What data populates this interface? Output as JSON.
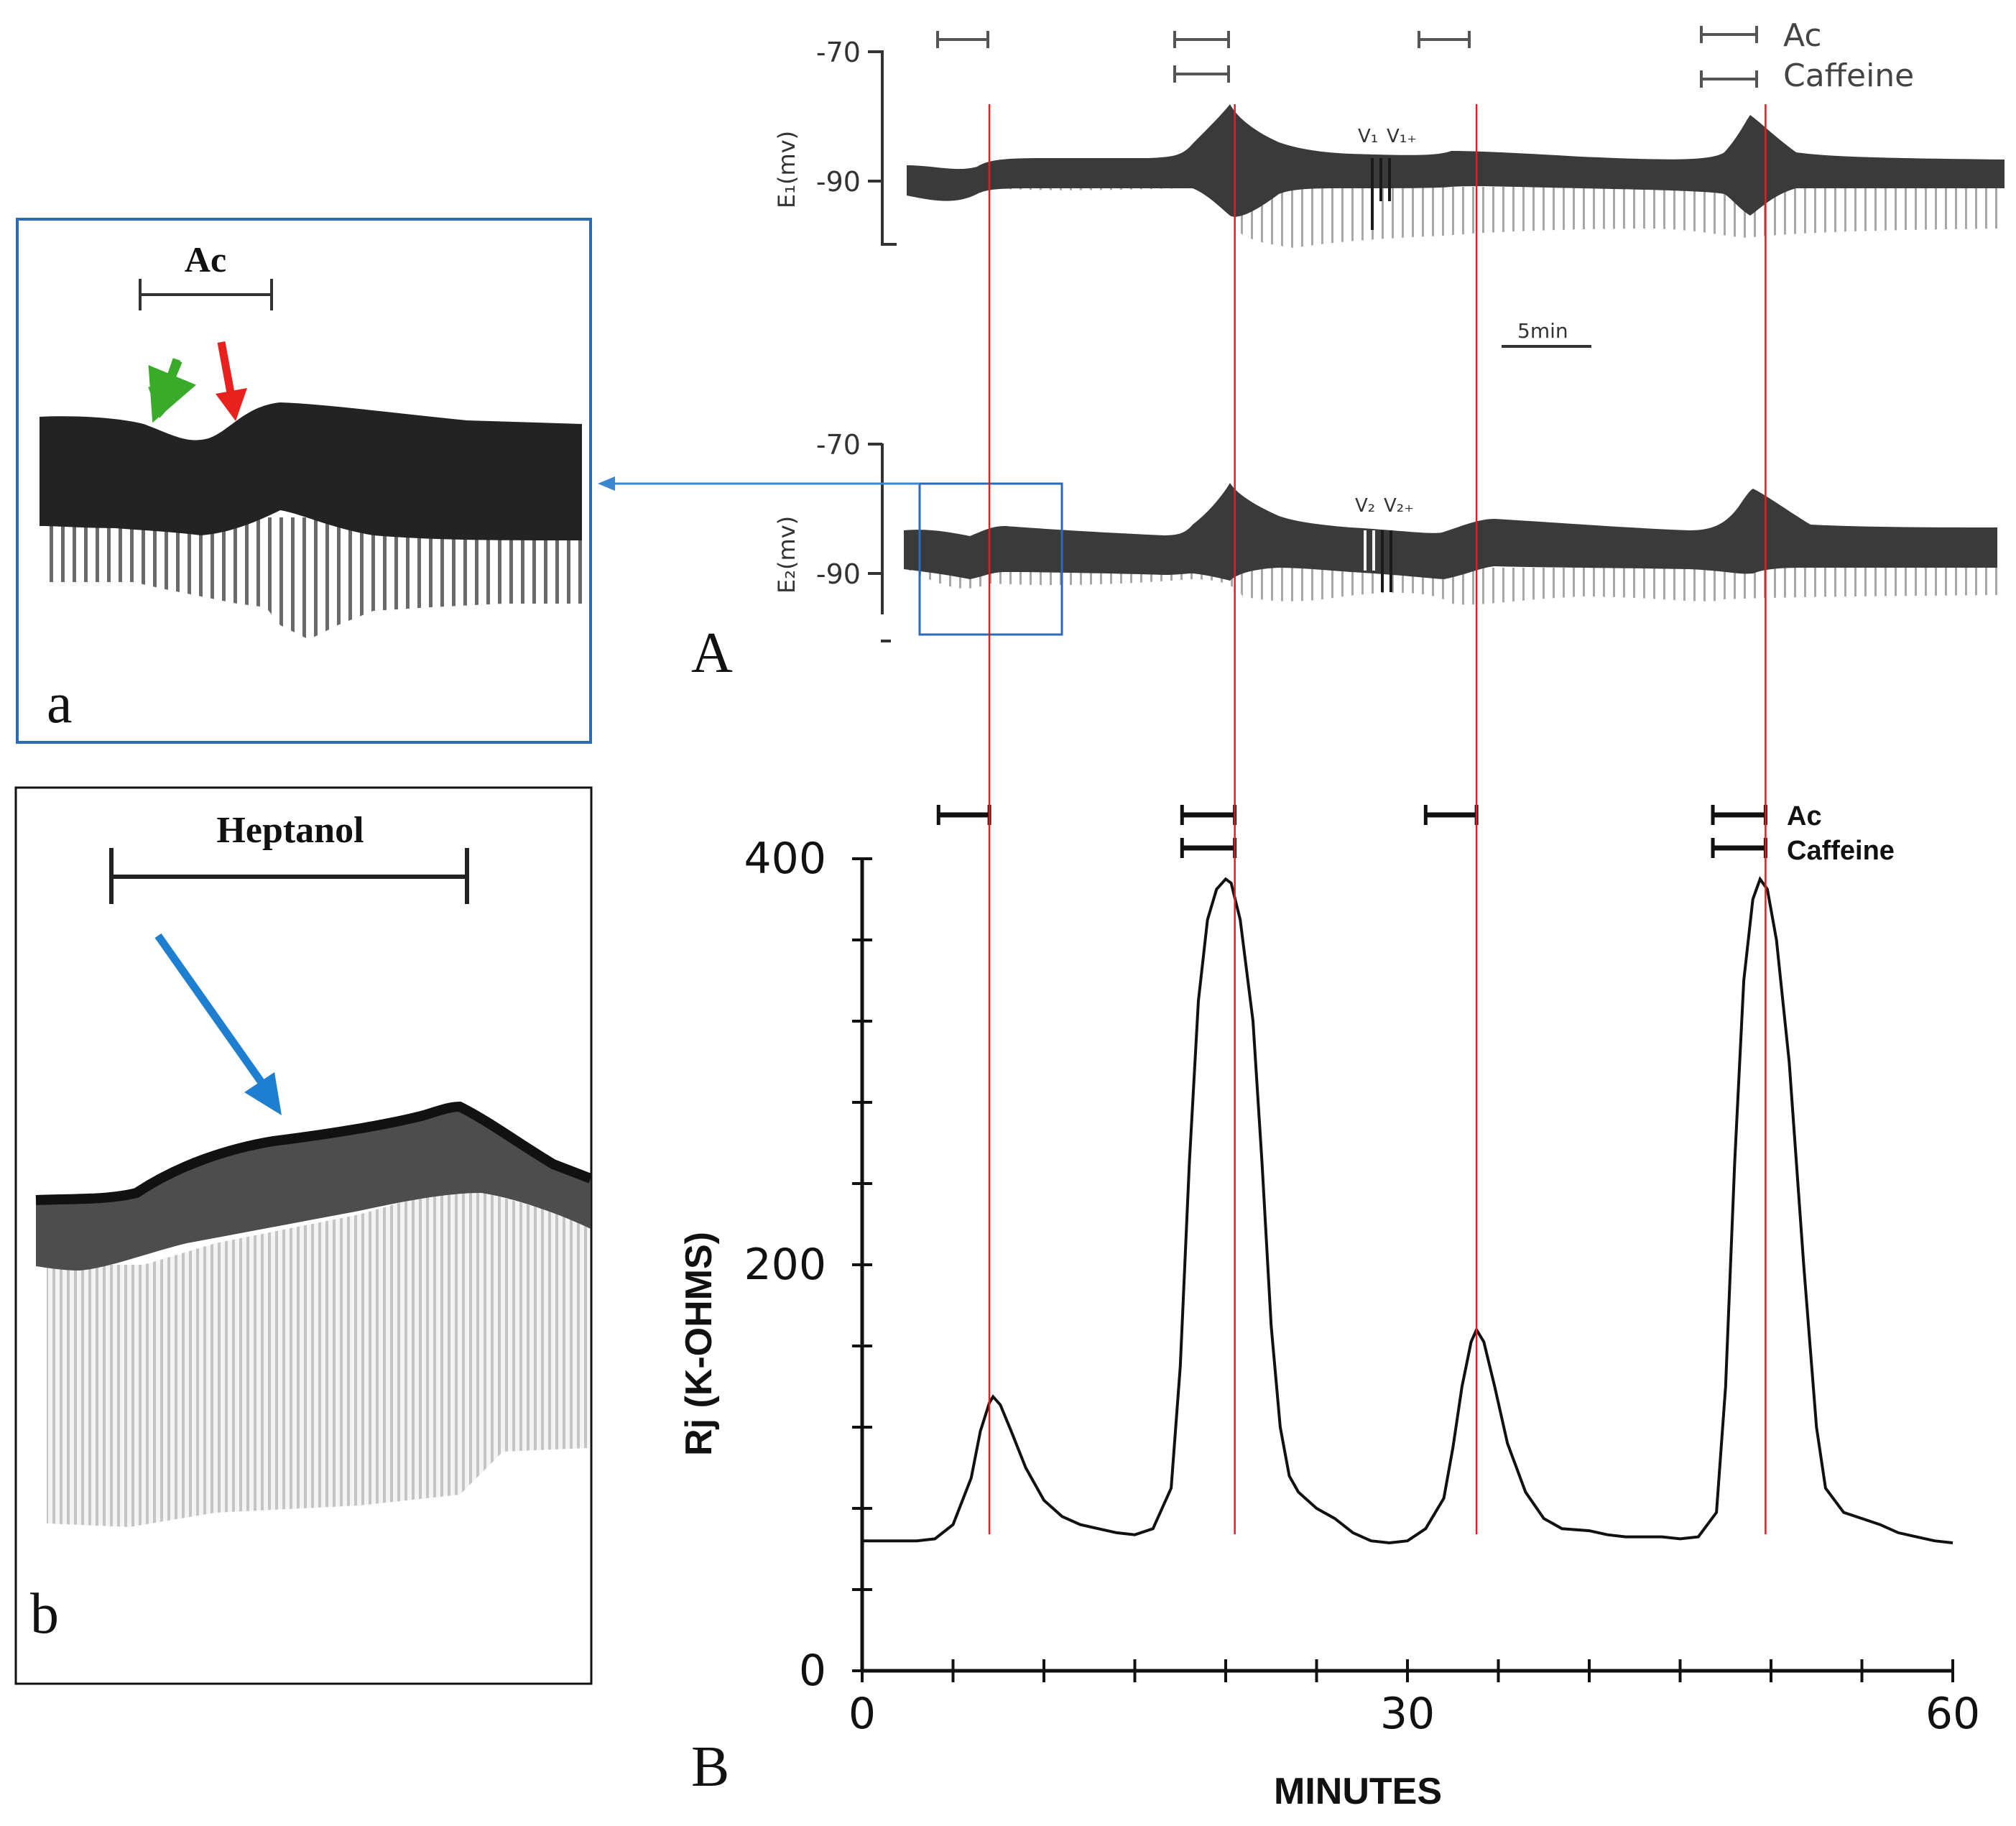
{
  "panel_labels": {
    "A": "A",
    "B": "B",
    "a": "a",
    "b": "b"
  },
  "treatments": {
    "ac": "Ac",
    "caffeine": "Caffeine",
    "heptanol": "Heptanol"
  },
  "trace_e1": {
    "ylabel": "E₁(mv)",
    "ticks": [
      "-70",
      "-90"
    ],
    "markers": [
      "V₁",
      "V₁₊"
    ]
  },
  "trace_e2": {
    "ylabel": "E₂(mv)",
    "ticks": [
      "-70",
      "-90"
    ],
    "markers": [
      "V₂",
      "V₂₊"
    ]
  },
  "scale_bar": "5min",
  "arrow_colors": {
    "green": "#3aaa2a",
    "red": "#e8201e",
    "blue": "#1e7fd0",
    "guide": "#e02020",
    "box": "#2a6ab8"
  },
  "chart_data": {
    "type": "line",
    "title": "",
    "xlabel": "MINUTES",
    "ylabel": "Rj (K-OHMS)",
    "xlim": [
      0,
      60
    ],
    "ylim": [
      0,
      400
    ],
    "xticks": [
      0,
      30,
      60
    ],
    "yticks": [
      0,
      200,
      400
    ],
    "series": [
      {
        "points": [
          [
            0,
            64
          ],
          [
            1,
            64
          ],
          [
            2,
            64
          ],
          [
            3,
            64
          ],
          [
            4,
            65
          ],
          [
            5,
            72
          ],
          [
            6,
            95
          ],
          [
            6.5,
            118
          ],
          [
            7,
            132
          ],
          [
            7.2,
            135
          ],
          [
            7.6,
            131
          ],
          [
            8.2,
            118
          ],
          [
            9,
            100
          ],
          [
            10,
            84
          ],
          [
            11,
            76
          ],
          [
            12,
            72
          ],
          [
            13,
            70
          ],
          [
            14,
            68
          ],
          [
            15,
            67
          ],
          [
            16,
            70
          ],
          [
            17,
            90
          ],
          [
            17.5,
            150
          ],
          [
            18,
            250
          ],
          [
            18.5,
            330
          ],
          [
            19,
            370
          ],
          [
            19.5,
            385
          ],
          [
            20,
            390
          ],
          [
            20.3,
            388
          ],
          [
            20.8,
            370
          ],
          [
            21.5,
            320
          ],
          [
            22,
            250
          ],
          [
            22.5,
            170
          ],
          [
            23,
            120
          ],
          [
            23.5,
            96
          ],
          [
            24,
            88
          ],
          [
            25,
            80
          ],
          [
            26,
            75
          ],
          [
            27,
            68
          ],
          [
            28,
            64
          ],
          [
            29,
            63
          ],
          [
            30,
            64
          ],
          [
            31,
            70
          ],
          [
            32,
            85
          ],
          [
            32.5,
            110
          ],
          [
            33,
            140
          ],
          [
            33.5,
            162
          ],
          [
            33.8,
            168
          ],
          [
            34.2,
            162
          ],
          [
            34.8,
            140
          ],
          [
            35.5,
            112
          ],
          [
            36.5,
            88
          ],
          [
            37.5,
            75
          ],
          [
            38.5,
            70
          ],
          [
            40,
            69
          ],
          [
            41,
            67
          ],
          [
            42,
            66
          ],
          [
            43,
            66
          ],
          [
            44,
            66
          ],
          [
            45,
            65
          ],
          [
            46,
            66
          ],
          [
            47,
            78
          ],
          [
            47.5,
            140
          ],
          [
            48,
            250
          ],
          [
            48.5,
            340
          ],
          [
            49,
            380
          ],
          [
            49.4,
            390
          ],
          [
            49.8,
            385
          ],
          [
            50.3,
            360
          ],
          [
            51,
            300
          ],
          [
            51.8,
            200
          ],
          [
            52.5,
            120
          ],
          [
            53,
            90
          ],
          [
            54,
            78
          ],
          [
            55,
            75
          ],
          [
            56,
            72
          ],
          [
            57,
            68
          ],
          [
            58,
            66
          ],
          [
            59,
            64
          ],
          [
            60,
            63
          ]
        ]
      }
    ],
    "event_minutes": [
      7,
      20.5,
      33.8,
      49.7
    ],
    "ac_bars": [
      [
        4.2,
        7
      ],
      [
        17.6,
        20.5
      ],
      [
        31,
        33.8
      ],
      [
        46.8,
        49.7
      ]
    ],
    "caffeine_bars": [
      [
        17.6,
        20.5
      ],
      [
        46.8,
        49.7
      ]
    ]
  }
}
